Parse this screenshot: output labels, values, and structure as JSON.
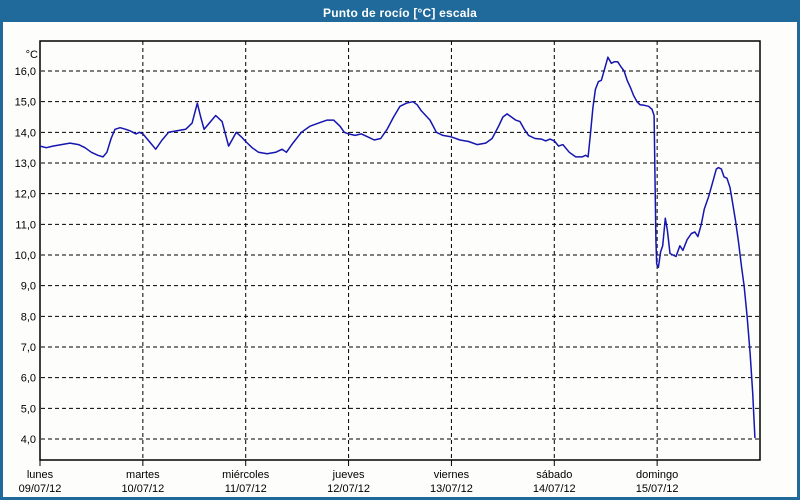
{
  "window": {
    "title": "Punto de rocío [°C] escala",
    "titlebar_color": "#1f6a9b",
    "border_color": "#1f6a9b",
    "background_color": "#fdfdfb"
  },
  "chart_data": {
    "type": "line",
    "title": "Punto de rocío [°C] escala",
    "unit_label": "°C",
    "series_name": "Punto de rocío",
    "series_color": "#1515b0",
    "grid": "dashed-black",
    "legend_position": "none",
    "ylim": [
      4,
      16
    ],
    "yticks": [
      16,
      15,
      14,
      13,
      12,
      11,
      10,
      9,
      8,
      7,
      6,
      5,
      4
    ],
    "ytick_labels": [
      "16,0",
      "15,0",
      "14,0",
      "13,0",
      "12,0",
      "11,0",
      "10,0",
      "9,0",
      "8,0",
      "7,0",
      "6,0",
      "5,0",
      "4,0"
    ],
    "xlabel": "",
    "x_unit": "hours_from_monday_00",
    "x_range_hours": [
      0,
      168
    ],
    "x_days": [
      {
        "name": "lunes",
        "date": "09/07/12"
      },
      {
        "name": "martes",
        "date": "10/07/12"
      },
      {
        "name": "miércoles",
        "date": "11/07/12"
      },
      {
        "name": "jueves",
        "date": "12/07/12"
      },
      {
        "name": "viernes",
        "date": "13/07/12"
      },
      {
        "name": "sábado",
        "date": "14/07/12"
      },
      {
        "name": "domingo",
        "date": "15/07/12"
      }
    ],
    "points": [
      [
        0,
        13.55
      ],
      [
        1.5,
        13.5
      ],
      [
        3,
        13.55
      ],
      [
        5,
        13.6
      ],
      [
        7,
        13.65
      ],
      [
        9,
        13.6
      ],
      [
        10.5,
        13.5
      ],
      [
        12,
        13.35
      ],
      [
        13.5,
        13.25
      ],
      [
        14.7,
        13.2
      ],
      [
        15.6,
        13.35
      ],
      [
        16.6,
        13.8
      ],
      [
        17.5,
        14.1
      ],
      [
        18.7,
        14.15
      ],
      [
        20,
        14.1
      ],
      [
        21,
        14.05
      ],
      [
        22.4,
        13.95
      ],
      [
        23.2,
        14.0
      ],
      [
        24,
        13.95
      ],
      [
        25.5,
        13.7
      ],
      [
        27,
        13.45
      ],
      [
        28.5,
        13.75
      ],
      [
        30,
        14.0
      ],
      [
        32,
        14.05
      ],
      [
        34,
        14.1
      ],
      [
        35.5,
        14.3
      ],
      [
        36.7,
        14.95
      ],
      [
        37.5,
        14.5
      ],
      [
        38.3,
        14.1
      ],
      [
        39.5,
        14.3
      ],
      [
        41,
        14.55
      ],
      [
        42.5,
        14.35
      ],
      [
        44,
        13.55
      ],
      [
        45.8,
        14.0
      ],
      [
        47,
        13.85
      ],
      [
        48,
        13.7
      ],
      [
        49.5,
        13.5
      ],
      [
        51,
        13.35
      ],
      [
        53,
        13.3
      ],
      [
        55,
        13.35
      ],
      [
        56.5,
        13.45
      ],
      [
        57.5,
        13.35
      ],
      [
        59,
        13.65
      ],
      [
        61,
        14.0
      ],
      [
        63,
        14.2
      ],
      [
        65,
        14.3
      ],
      [
        67,
        14.4
      ],
      [
        68.5,
        14.4
      ],
      [
        70,
        14.2
      ],
      [
        71,
        14.0
      ],
      [
        72,
        13.95
      ],
      [
        73.5,
        13.9
      ],
      [
        75,
        13.95
      ],
      [
        76.5,
        13.85
      ],
      [
        78,
        13.75
      ],
      [
        79.5,
        13.8
      ],
      [
        81,
        14.1
      ],
      [
        82.5,
        14.5
      ],
      [
        84,
        14.85
      ],
      [
        85.5,
        14.95
      ],
      [
        87,
        15.0
      ],
      [
        88,
        14.9
      ],
      [
        89,
        14.7
      ],
      [
        90,
        14.55
      ],
      [
        91,
        14.4
      ],
      [
        92.5,
        14.0
      ],
      [
        94,
        13.9
      ],
      [
        96,
        13.85
      ],
      [
        98,
        13.75
      ],
      [
        100,
        13.7
      ],
      [
        102,
        13.6
      ],
      [
        104,
        13.65
      ],
      [
        105.5,
        13.8
      ],
      [
        107,
        14.2
      ],
      [
        108,
        14.5
      ],
      [
        109,
        14.6
      ],
      [
        110,
        14.5
      ],
      [
        111,
        14.4
      ],
      [
        112,
        14.35
      ],
      [
        113,
        14.1
      ],
      [
        114,
        13.9
      ],
      [
        115.5,
        13.8
      ],
      [
        117,
        13.78
      ],
      [
        118,
        13.72
      ],
      [
        119,
        13.78
      ],
      [
        120,
        13.72
      ],
      [
        121,
        13.55
      ],
      [
        122,
        13.6
      ],
      [
        123.5,
        13.35
      ],
      [
        125,
        13.2
      ],
      [
        126.5,
        13.2
      ],
      [
        127.3,
        13.25
      ],
      [
        127.9,
        13.2
      ],
      [
        128.4,
        13.9
      ],
      [
        129,
        14.8
      ],
      [
        129.6,
        15.4
      ],
      [
        130.3,
        15.65
      ],
      [
        131,
        15.7
      ],
      [
        131.8,
        16.1
      ],
      [
        132.5,
        16.45
      ],
      [
        133.3,
        16.25
      ],
      [
        134,
        16.3
      ],
      [
        134.8,
        16.3
      ],
      [
        135.5,
        16.15
      ],
      [
        136.3,
        16.0
      ],
      [
        137,
        15.7
      ],
      [
        137.8,
        15.45
      ],
      [
        138.5,
        15.2
      ],
      [
        139.3,
        15.0
      ],
      [
        140,
        14.9
      ],
      [
        141,
        14.88
      ],
      [
        142,
        14.85
      ],
      [
        142.8,
        14.75
      ],
      [
        143.3,
        14.55
      ],
      [
        143.5,
        12.5
      ],
      [
        143.7,
        10.5
      ],
      [
        143.9,
        9.7
      ],
      [
        144.3,
        9.6
      ],
      [
        144.8,
        10.1
      ],
      [
        145.3,
        10.3
      ],
      [
        145.9,
        11.2
      ],
      [
        146.4,
        10.8
      ],
      [
        147,
        10.05
      ],
      [
        147.7,
        10.0
      ],
      [
        148.4,
        9.95
      ],
      [
        149.3,
        10.3
      ],
      [
        150,
        10.15
      ],
      [
        151,
        10.5
      ],
      [
        152,
        10.7
      ],
      [
        152.8,
        10.75
      ],
      [
        153.5,
        10.6
      ],
      [
        154.3,
        11.0
      ],
      [
        155,
        11.5
      ],
      [
        156,
        11.9
      ],
      [
        157,
        12.4
      ],
      [
        157.8,
        12.8
      ],
      [
        158.3,
        12.85
      ],
      [
        159,
        12.8
      ],
      [
        159.6,
        12.55
      ],
      [
        160.3,
        12.5
      ],
      [
        161,
        12.2
      ],
      [
        161.6,
        11.7
      ],
      [
        162.3,
        11.1
      ],
      [
        163,
        10.4
      ],
      [
        163.7,
        9.6
      ],
      [
        164.3,
        9.0
      ],
      [
        165,
        8.0
      ],
      [
        165.7,
        6.8
      ],
      [
        166.3,
        5.5
      ],
      [
        166.8,
        4.05
      ]
    ]
  }
}
